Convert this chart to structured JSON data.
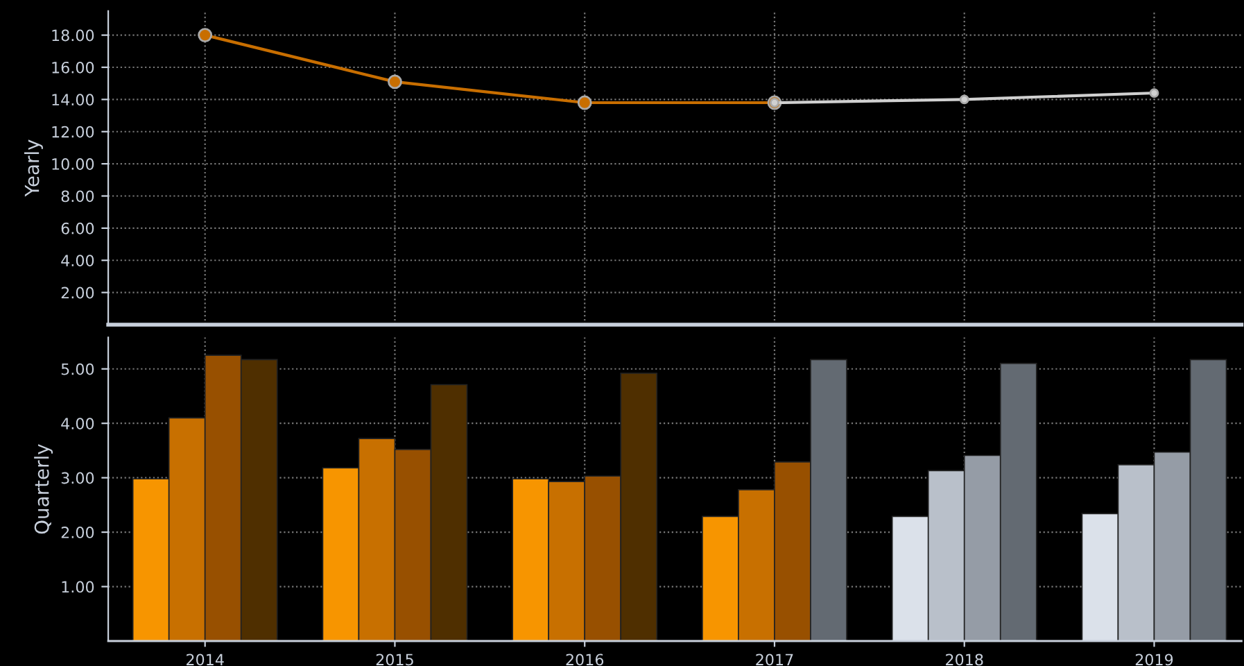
{
  "chart_data": [
    {
      "type": "line",
      "categories": [
        "2014",
        "2015",
        "2016",
        "2017",
        "2018",
        "2019"
      ],
      "ylabel": "Yearly",
      "ylim": [
        0,
        19.5
      ],
      "yticks": [
        {
          "value": 2,
          "label": "2.00"
        },
        {
          "value": 4,
          "label": "4.00"
        },
        {
          "value": 6,
          "label": "6.00"
        },
        {
          "value": 8,
          "label": "8.00"
        },
        {
          "value": 10,
          "label": "10.00"
        },
        {
          "value": 12,
          "label": "12.00"
        },
        {
          "value": 14,
          "label": "14.00"
        },
        {
          "value": 16,
          "label": "16.00"
        },
        {
          "value": 18,
          "label": "18.00"
        }
      ],
      "series": [
        {
          "color": "#c86e00",
          "values": [
            18.0,
            15.1,
            13.8,
            13.8,
            null,
            null
          ]
        },
        {
          "color": "#d0d0d0",
          "values": [
            null,
            null,
            null,
            13.8,
            14.0,
            14.4
          ]
        }
      ],
      "marker": "circle",
      "grid": true,
      "tick_labels": "y"
    },
    {
      "type": "bar",
      "categories": [
        "2014",
        "2015",
        "2016",
        "2017",
        "2018",
        "2019"
      ],
      "ylabel": "Quarterly",
      "ylim": [
        0,
        5.58
      ],
      "yticks": [
        {
          "value": 1,
          "label": "1.00"
        },
        {
          "value": 2,
          "label": "2.00"
        },
        {
          "value": 3,
          "label": "3.00"
        },
        {
          "value": 4,
          "label": "4.00"
        },
        {
          "value": 5,
          "label": "5.00"
        }
      ],
      "series": [
        {
          "values": [
            2.98,
            3.18,
            2.98,
            2.29,
            2.29,
            2.34
          ],
          "colors": [
            "#f79500",
            "#f79500",
            "#f79500",
            "#f79500",
            "#dbe1ea",
            "#dbe1ea"
          ]
        },
        {
          "values": [
            4.1,
            3.72,
            2.93,
            2.78,
            3.13,
            3.24
          ],
          "colors": [
            "#c87000",
            "#c87000",
            "#c87000",
            "#c87000",
            "#b9c0ca",
            "#b9c0ca"
          ]
        },
        {
          "values": [
            5.25,
            3.52,
            3.03,
            3.29,
            3.41,
            3.47
          ],
          "colors": [
            "#985000",
            "#985000",
            "#985000",
            "#985000",
            "#959ca6",
            "#959ca6"
          ]
        },
        {
          "values": [
            5.17,
            4.71,
            4.92,
            5.17,
            5.1,
            5.17
          ],
          "colors": [
            "#4f2f00",
            "#4f2f00",
            "#4f2f00",
            "#636a72",
            "#636a72",
            "#636a72"
          ]
        }
      ],
      "grid": true
    }
  ]
}
